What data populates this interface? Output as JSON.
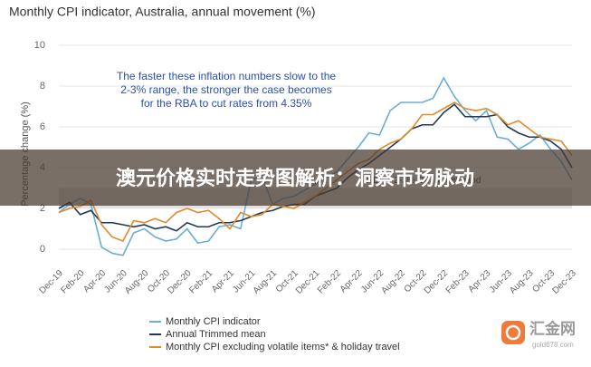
{
  "chart_data": {
    "type": "line",
    "title": "Monthly CPI indicator, Australia, annual movement (%)",
    "y_label": "Percentage change (%)",
    "categories": [
      "Dec-19",
      null,
      "Feb-20",
      null,
      "Apr-20",
      null,
      "Jun-20",
      null,
      "Aug-20",
      null,
      "Oct-20",
      null,
      "Dec-20",
      null,
      "Feb-21",
      null,
      "Apr-21",
      null,
      "Jun-21",
      null,
      "Aug-21",
      null,
      "Oct-21",
      null,
      "Dec-21",
      null,
      "Feb-22",
      null,
      "Apr-22",
      null,
      "Jun-22",
      null,
      "Aug-22",
      null,
      "Oct-22",
      null,
      "Dec-22",
      null,
      "Feb-23",
      null,
      "Apr-23",
      null,
      "Jun-23",
      null,
      "Aug-23",
      null,
      "Oct-23",
      null,
      "Dec-23"
    ],
    "series": [
      {
        "name": "Monthly CPI indicator",
        "color": "#6aaed6",
        "values": [
          1.8,
          2.2,
          2.5,
          2.2,
          0.1,
          -0.2,
          -0.3,
          0.8,
          1.0,
          0.6,
          0.4,
          0.5,
          1.0,
          0.3,
          0.4,
          1.1,
          1.2,
          1.0,
          3.4,
          3.6,
          2.2,
          2.5,
          2.6,
          2.9,
          3.2,
          3.5,
          3.8,
          4.4,
          5.0,
          5.7,
          5.6,
          6.8,
          7.2,
          7.2,
          7.2,
          7.4,
          8.4,
          7.5,
          6.8,
          6.3,
          6.8,
          5.5,
          5.4,
          4.9,
          5.2,
          5.6,
          4.9,
          4.3,
          3.4
        ]
      },
      {
        "name": "Annual Trimmed mean",
        "color": "#1f3a57",
        "values": [
          2.0,
          2.3,
          1.7,
          1.9,
          1.3,
          1.3,
          1.2,
          1.1,
          1.2,
          1.0,
          1.1,
          0.9,
          1.3,
          1.1,
          1.1,
          1.3,
          1.3,
          1.4,
          1.6,
          1.8,
          1.9,
          2.1,
          2.2,
          2.2,
          2.6,
          2.8,
          3.0,
          3.5,
          3.9,
          4.2,
          4.6,
          5.0,
          5.4,
          5.9,
          6.1,
          6.1,
          6.7,
          7.1,
          6.5,
          6.5,
          6.5,
          6.6,
          6.0,
          5.7,
          5.5,
          5.5,
          5.3,
          4.9,
          4.0
        ]
      },
      {
        "name": "Monthly CPI excluding volatile items* & holiday travel",
        "color": "#e08a2c",
        "values": [
          1.8,
          2.0,
          2.1,
          2.4,
          1.2,
          0.6,
          0.4,
          1.4,
          1.3,
          1.5,
          1.3,
          1.8,
          2.0,
          1.8,
          1.9,
          1.5,
          1.0,
          1.8,
          1.6,
          1.7,
          2.2,
          2.1,
          2.0,
          2.3,
          2.6,
          3.0,
          3.4,
          3.8,
          4.2,
          4.4,
          4.9,
          5.2,
          5.4,
          5.9,
          6.6,
          6.6,
          6.9,
          7.2,
          6.9,
          6.8,
          6.9,
          6.6,
          6.1,
          6.3,
          5.9,
          5.5,
          5.4,
          5.3,
          4.6
        ]
      }
    ],
    "target_band": {
      "range": [
        2,
        3
      ],
      "label": "RBA's 2-3% CPI target band",
      "color": "#e3e3e3"
    },
    "annotation": [
      "The faster these inflation numbers slow to the",
      "2-3% range, the stronger the case becomes",
      "for the RBA to cut rates from 4.35%"
    ],
    "ylim": [
      -0.6,
      10
    ],
    "yticks": [
      0,
      2,
      4,
      6,
      8,
      10
    ],
    "grid": true
  },
  "banner": {
    "text": "澳元价格实时走势图解析：洞察市场脉动"
  },
  "watermark": {
    "name": "汇金网",
    "site": "gold678.com"
  }
}
